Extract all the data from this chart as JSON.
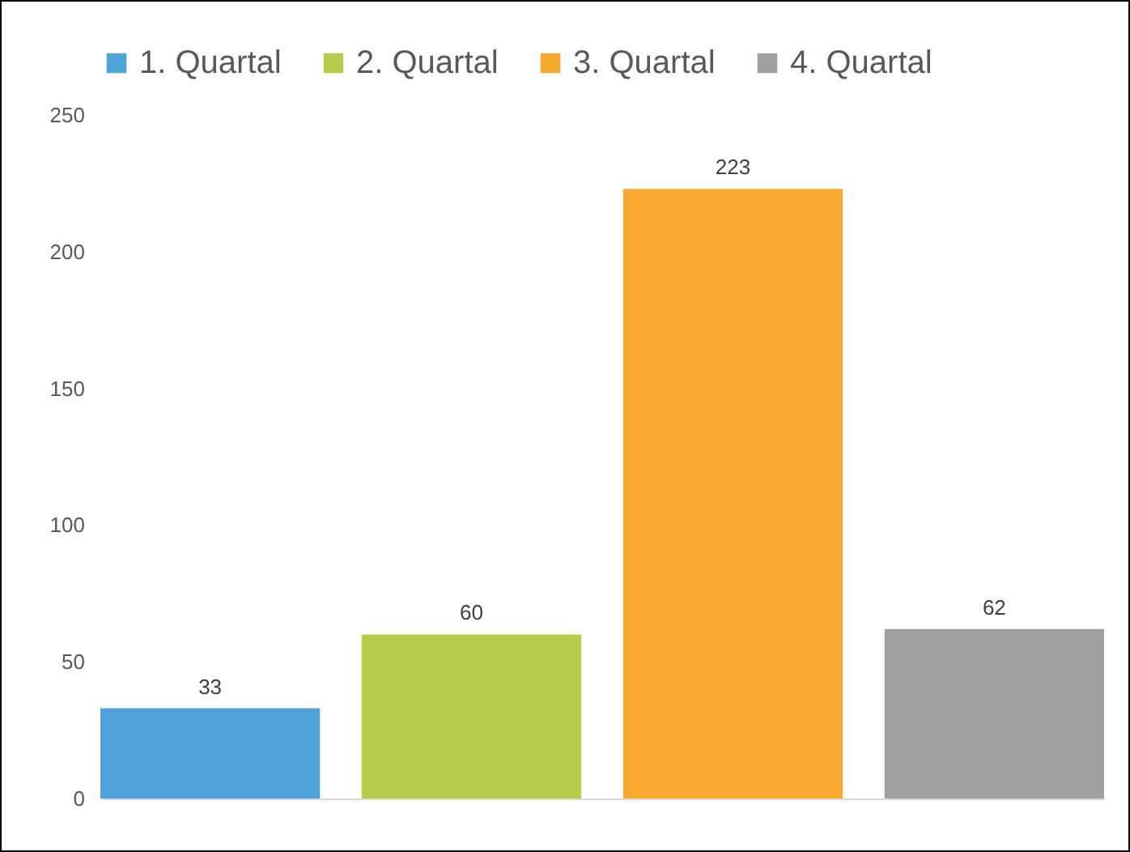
{
  "chart_data": {
    "type": "bar",
    "categories": [
      null
    ],
    "series": [
      {
        "name": "1. Quartal",
        "color": "#4fa3d8",
        "values": [
          33
        ]
      },
      {
        "name": "2. Quartal",
        "color": "#b6cd4b",
        "values": [
          60
        ]
      },
      {
        "name": "3. Quartal",
        "color": "#f8a932",
        "values": [
          223
        ]
      },
      {
        "name": "4. Quartal",
        "color": "#a0a0a0",
        "values": [
          62
        ]
      }
    ],
    "ylim": [
      0,
      250
    ],
    "yticks": [
      0,
      50,
      100,
      150,
      200,
      250
    ],
    "grid": false,
    "legend": "top",
    "data_labels": true
  }
}
